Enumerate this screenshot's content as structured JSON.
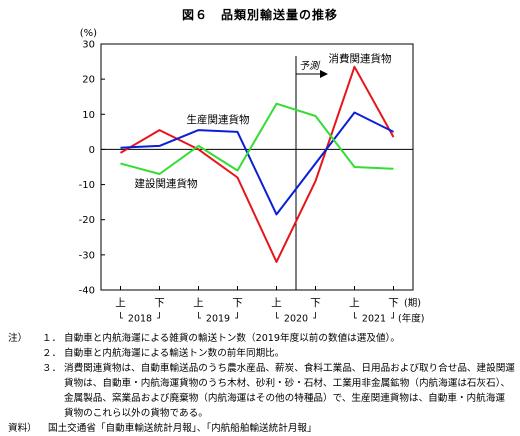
{
  "chart_data": {
    "type": "line",
    "title": "図６　品類別輸送量の推移",
    "yunit": "(%)",
    "ylim": [
      -40,
      30
    ],
    "yticks": [
      30,
      20,
      10,
      0,
      -10,
      -20,
      -30,
      -40
    ],
    "categories": [
      "上",
      "下",
      "上",
      "下",
      "上",
      "下",
      "上",
      "下"
    ],
    "xunit": "(期)",
    "year_labels": [
      "2018",
      "2019",
      "2020",
      "2021"
    ],
    "year_unit": "(年度)",
    "forecast_label": "予測",
    "series": [
      {
        "name": "消費関連貨物",
        "color": "#e8141b",
        "values": [
          -1,
          5.5,
          0,
          -8,
          -32,
          -9,
          23.5,
          3.5
        ]
      },
      {
        "name": "生産関連貨物",
        "color": "#0a1fd6",
        "values": [
          0.5,
          1,
          5.5,
          5,
          -18.5,
          -4,
          10.5,
          5
        ]
      },
      {
        "name": "建設関連貨物",
        "color": "#33dd33",
        "values": [
          -4,
          -7,
          1,
          -6,
          13,
          9.5,
          -5,
          -5.5
        ]
      }
    ]
  },
  "notes": {
    "prefix": "注）",
    "items": [
      {
        "num": "１．",
        "text": "自動車と内航海運による雑貨の輸送トン数（2019年度以前の数値は選及値）。"
      },
      {
        "num": "２．",
        "text": "自動車と内航海運による輸送トン数の前年同期比。"
      },
      {
        "num": "３．",
        "text": "消費関連貨物は、自動車輸送品のうち農水産品、薪炭、食料工業品、日用品および取り合せ品、建設関運"
      }
    ],
    "continuation": [
      "貨物は、自動車・内航海運貨物のうち木材、砂利・砂・石材、工業用非金属鉱物（内航海運は石灰石）、",
      "金属製品、窯業品および廃棄物（内航海運はその他の特種品）で、生産関連貨物は、自動車・内航海運",
      "貨物のこれら以外の貨物である。"
    ],
    "source_prefix": "資料）",
    "source_text": "国土交通省「自動車輸送統計月報」、「内航船舶輸送統計月報」"
  }
}
